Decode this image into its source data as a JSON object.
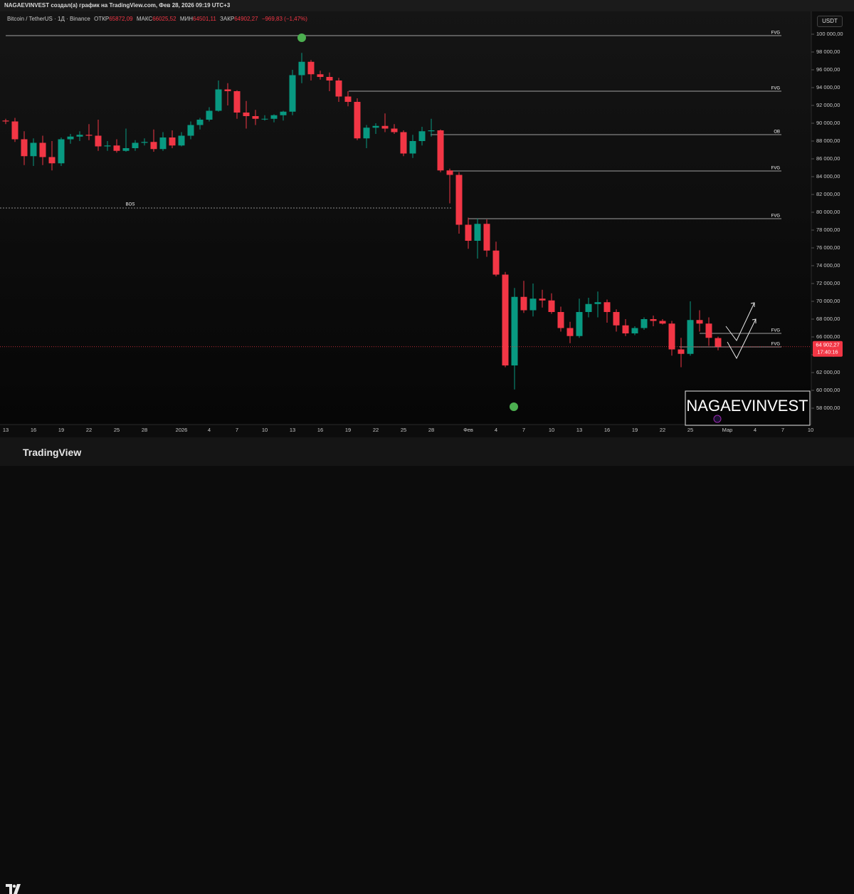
{
  "top_bar": {
    "text": "NAGAEVINVEST создал(а) график на TradingView.com, Фев 28, 2026 09:19 UTC+3"
  },
  "header": {
    "symbol": "Bitcoin / TetherUS · 1Д · Binance",
    "open_label": "ОТКР",
    "open": "65872,09",
    "high_label": "МАКС",
    "high": "66025,52",
    "low_label": "МИН",
    "low": "64501,11",
    "close_label": "ЗАКР",
    "close": "64902,27",
    "change": "−969,83 (−1,47%)"
  },
  "currency": "USDT",
  "watermark": "NAGAEVINVEST",
  "footer": {
    "logo": "TradingView"
  },
  "chart_data": {
    "type": "candlestick",
    "up_color": "#089981",
    "down_color": "#f23645",
    "ylim": [
      56240,
      102560
    ],
    "yticks": [
      {
        "value": 58000,
        "label": "58 000,00"
      },
      {
        "value": 60000,
        "label": "60 000,00"
      },
      {
        "value": 62000,
        "label": "62 000,00"
      },
      {
        "value": 64000,
        "label": "64 000,00"
      },
      {
        "value": 66000,
        "label": "66 000,00"
      },
      {
        "value": 68000,
        "label": "68 000,00"
      },
      {
        "value": 70000,
        "label": "70 000,00"
      },
      {
        "value": 72000,
        "label": "72 000,00"
      },
      {
        "value": 74000,
        "label": "74 000,00"
      },
      {
        "value": 76000,
        "label": "76 000,00"
      },
      {
        "value": 78000,
        "label": "78 000,00"
      },
      {
        "value": 80000,
        "label": "80 000,00"
      },
      {
        "value": 82000,
        "label": "82 000,00"
      },
      {
        "value": 84000,
        "label": "84 000,00"
      },
      {
        "value": 86000,
        "label": "86 000,00"
      },
      {
        "value": 88000,
        "label": "88 000,00"
      },
      {
        "value": 90000,
        "label": "90 000,00"
      },
      {
        "value": 92000,
        "label": "92 000,00"
      },
      {
        "value": 94000,
        "label": "94 000,00"
      },
      {
        "value": 96000,
        "label": "96 000,00"
      },
      {
        "value": 98000,
        "label": "98 000,00"
      },
      {
        "value": 100000,
        "label": "100 000,00"
      }
    ],
    "categories": [
      "13",
      null,
      null,
      "16",
      null,
      null,
      "19",
      null,
      null,
      "22",
      null,
      null,
      "25",
      null,
      null,
      "28",
      null,
      null,
      null,
      "2026",
      null,
      null,
      "4",
      null,
      null,
      "7",
      null,
      null,
      "10",
      null,
      null,
      "13",
      null,
      null,
      "16",
      null,
      null,
      "19",
      null,
      null,
      "22",
      null,
      null,
      "25",
      null,
      null,
      "28",
      null,
      null,
      null,
      "Фев",
      null,
      null,
      "4",
      null,
      null,
      "7",
      null,
      null,
      "10",
      null,
      null,
      "13",
      null,
      null,
      "16",
      null,
      null,
      "19",
      null,
      null,
      "22",
      null,
      null,
      "25",
      null,
      null,
      null,
      "Мар",
      null,
      null,
      "4",
      null,
      null,
      "7",
      null,
      null,
      "10"
    ],
    "open": [
      90300,
      90200,
      88200,
      86300,
      87800,
      86200,
      85500,
      88200,
      88500,
      88700,
      88600,
      87400,
      87500,
      86900,
      87200,
      87800,
      87900,
      87100,
      88400,
      87500,
      88600,
      89800,
      90400,
      91400,
      93800,
      93600,
      91200,
      90800,
      90500,
      90500,
      90900,
      91300,
      95400,
      96900,
      95500,
      95200,
      94800,
      93000,
      92400,
      88300,
      89500,
      89700,
      89400,
      89000,
      86600,
      88000,
      89100,
      89200,
      84700,
      84200,
      78600,
      76800,
      78700,
      75700,
      73000,
      62800,
      70500,
      69000,
      70300,
      70100,
      68800,
      67000,
      66100,
      68800,
      69700,
      69900,
      68800,
      67300,
      66400,
      67000,
      68000,
      67800,
      67500,
      64600,
      64100,
      67900,
      67500,
      65872.09,
      null,
      null,
      null,
      null,
      null,
      null,
      null,
      null,
      null,
      null
    ],
    "high": [
      90500,
      90600,
      89100,
      88300,
      88600,
      88000,
      88400,
      88800,
      89100,
      89900,
      90400,
      88000,
      88200,
      89400,
      88100,
      88300,
      89300,
      89000,
      89200,
      89000,
      90200,
      90600,
      91800,
      94800,
      94500,
      93700,
      92500,
      91500,
      90900,
      91000,
      91400,
      96000,
      97900,
      97100,
      95900,
      95700,
      95100,
      93600,
      92800,
      89800,
      90000,
      91100,
      89900,
      89200,
      88700,
      89600,
      90500,
      89300,
      84900,
      84500,
      79400,
      79300,
      79200,
      76700,
      73300,
      71500,
      72300,
      72000,
      71300,
      70900,
      69400,
      67700,
      70300,
      70400,
      71100,
      70200,
      69100,
      68000,
      67200,
      68200,
      68400,
      68000,
      67800,
      65900,
      70000,
      69000,
      68200,
      66025.52,
      null,
      null,
      null,
      null,
      null,
      null,
      null,
      null,
      null,
      null
    ],
    "low": [
      89900,
      87900,
      85300,
      85200,
      85300,
      84700,
      85200,
      87700,
      88000,
      88100,
      86900,
      86900,
      86700,
      86800,
      86900,
      87500,
      86800,
      86900,
      87200,
      87400,
      88200,
      89300,
      90200,
      91300,
      92000,
      90500,
      89400,
      89800,
      90300,
      90100,
      90300,
      90900,
      94500,
      94800,
      94900,
      93600,
      92400,
      91900,
      88100,
      87200,
      88800,
      89000,
      88800,
      86300,
      86100,
      87500,
      88500,
      84500,
      81000,
      77600,
      75900,
      74800,
      75000,
      72800,
      62600,
      60100,
      68700,
      68300,
      69300,
      68600,
      66600,
      65300,
      65900,
      68200,
      68200,
      67600,
      66600,
      66100,
      66200,
      66800,
      67200,
      67400,
      63900,
      62600,
      63900,
      66600,
      65000,
      64501.11,
      null,
      null,
      null,
      null,
      null,
      null,
      null,
      null,
      null,
      null
    ],
    "close": [
      90200,
      88200,
      86300,
      87800,
      86200,
      85500,
      88200,
      88500,
      88700,
      88600,
      87400,
      87500,
      86900,
      87200,
      87800,
      87900,
      87100,
      88400,
      87500,
      88600,
      89800,
      90400,
      91400,
      93800,
      93600,
      91200,
      90800,
      90500,
      90500,
      90900,
      91300,
      95400,
      96900,
      95500,
      95200,
      94800,
      93000,
      92400,
      88300,
      89500,
      89700,
      89400,
      89000,
      86600,
      88000,
      89100,
      89200,
      84700,
      84200,
      78600,
      76800,
      78700,
      75700,
      73000,
      62800,
      70500,
      69000,
      70300,
      70100,
      68800,
      67000,
      66100,
      68800,
      69700,
      69900,
      68800,
      67300,
      66400,
      67000,
      68000,
      67800,
      67500,
      64600,
      64100,
      67900,
      67500,
      65900,
      64902.27,
      null,
      null,
      null,
      null,
      null,
      null,
      null,
      null,
      null,
      null
    ],
    "levels": [
      {
        "label": "FVG",
        "value": 99840
      },
      {
        "label": "FVG",
        "value": 93600
      },
      {
        "label": "OB",
        "value": 88720
      },
      {
        "label": "FVG",
        "value": 84640
      },
      {
        "label": "FVG",
        "value": 79280
      },
      {
        "label": "FVG",
        "value": 66400
      },
      {
        "label": "FVG",
        "value": 64880
      }
    ],
    "bos": {
      "label": "BOS",
      "value": 80480
    },
    "price_label": "64 902,27",
    "countdown": "17:40:16"
  }
}
